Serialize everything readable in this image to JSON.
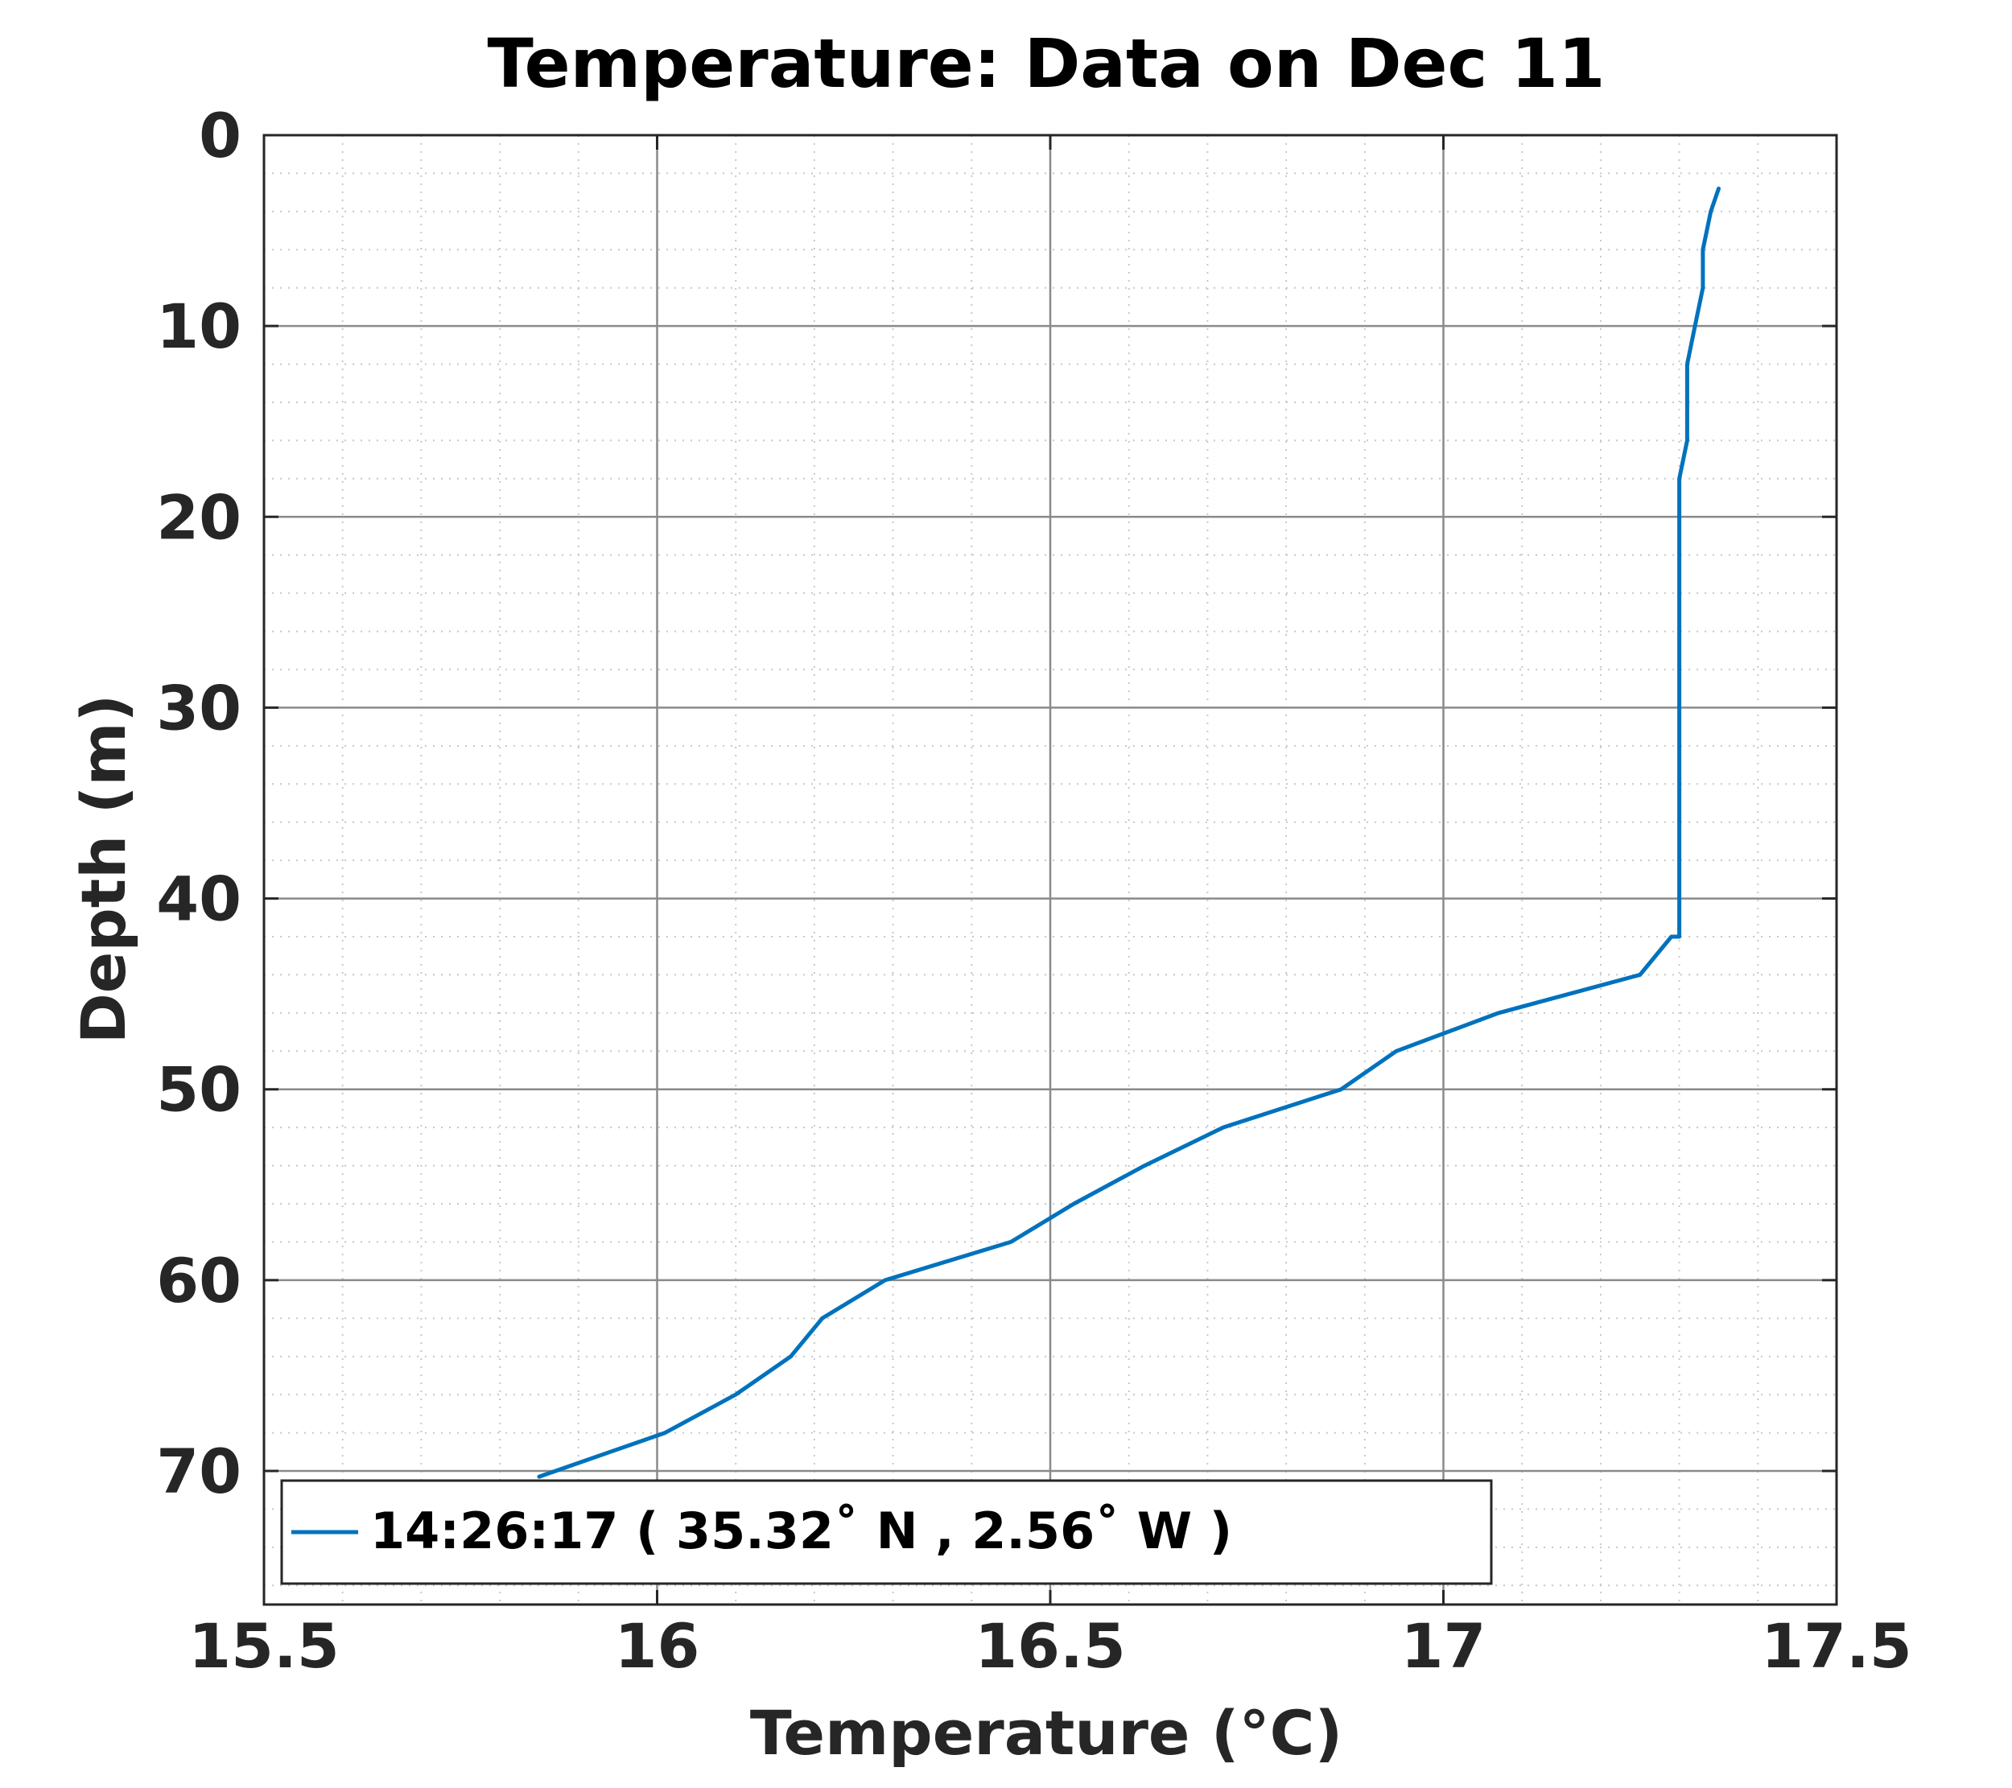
{
  "chart_data": {
    "type": "line",
    "title": "Temperature: Data on Dec 11",
    "xlabel": "Temperature (°C)",
    "ylabel": "Depth (m)",
    "xlim": [
      15.5,
      17.5
    ],
    "ylim": [
      0,
      77
    ],
    "y_reversed": true,
    "xticks": [
      15.5,
      16,
      16.5,
      17,
      17.5
    ],
    "xtick_labels": [
      "15.5",
      "16",
      "16.5",
      "17",
      "17.5"
    ],
    "yticks": [
      0,
      10,
      20,
      30,
      40,
      50,
      60,
      70
    ],
    "ytick_labels": [
      "0",
      "10",
      "20",
      "30",
      "40",
      "50",
      "60",
      "70"
    ],
    "grid": true,
    "minor_grid": true,
    "legend": "bottom-left",
    "series": [
      {
        "name": "14:26:17 ( 35.32˚ N , 2.56˚ W )",
        "color": "#0072BD",
        "x": [
          17.35,
          17.34,
          17.33,
          17.33,
          17.32,
          17.31,
          17.31,
          17.31,
          17.3,
          17.3,
          17.3,
          17.3,
          17.3,
          17.3,
          17.3,
          17.3,
          17.3,
          17.3,
          17.3,
          17.3,
          17.3,
          17.29,
          17.25,
          17.07,
          16.94,
          16.87,
          16.72,
          16.62,
          16.53,
          16.45,
          16.29,
          16.21,
          16.17,
          16.1,
          16.01,
          15.85
        ],
        "y": [
          2.8,
          4,
          6,
          8,
          10,
          12,
          14,
          16,
          18,
          20,
          22,
          24,
          26,
          28,
          30,
          32,
          34,
          36,
          38,
          40,
          42,
          42,
          44,
          46,
          48,
          50,
          52,
          54,
          56,
          58,
          60,
          62,
          64,
          66,
          68,
          70.3
        ]
      }
    ]
  }
}
